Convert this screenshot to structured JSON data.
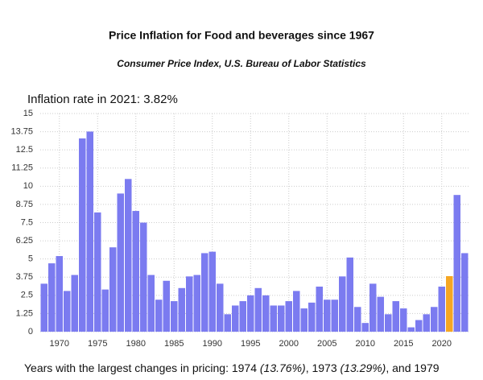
{
  "chart_data": {
    "type": "bar",
    "title": "Price Inflation for Food and beverages since 1967",
    "subtitle": "Consumer Price Index, U.S. Bureau of Labor Statistics",
    "annotation": "Inflation rate in 2021: 3.82%",
    "footer": [
      {
        "text": "Years with the largest changes in pricing: 1974 ",
        "italic": false
      },
      {
        "text": "(13.76%)",
        "italic": true
      },
      {
        "text": ", 1973 ",
        "italic": false
      },
      {
        "text": "(13.29%)",
        "italic": true
      },
      {
        "text": ", and 1979",
        "italic": false
      }
    ],
    "x": [
      1968,
      1969,
      1970,
      1971,
      1972,
      1973,
      1974,
      1975,
      1976,
      1977,
      1978,
      1979,
      1980,
      1981,
      1982,
      1983,
      1984,
      1985,
      1986,
      1987,
      1988,
      1989,
      1990,
      1991,
      1992,
      1993,
      1994,
      1995,
      1996,
      1997,
      1998,
      1999,
      2000,
      2001,
      2002,
      2003,
      2004,
      2005,
      2006,
      2007,
      2008,
      2009,
      2010,
      2011,
      2012,
      2013,
      2014,
      2015,
      2016,
      2017,
      2018,
      2019,
      2020,
      2021,
      2022,
      2023
    ],
    "values": [
      3.3,
      4.7,
      5.2,
      2.8,
      3.9,
      13.29,
      13.76,
      8.2,
      2.9,
      5.8,
      9.5,
      10.5,
      8.3,
      7.5,
      3.9,
      2.2,
      3.5,
      2.1,
      3.0,
      3.8,
      3.9,
      5.4,
      5.5,
      3.3,
      1.2,
      1.8,
      2.1,
      2.5,
      3.0,
      2.5,
      1.8,
      1.8,
      2.1,
      2.8,
      1.6,
      2.0,
      3.1,
      2.2,
      2.2,
      3.8,
      5.1,
      1.7,
      0.6,
      3.3,
      2.4,
      1.2,
      2.1,
      1.6,
      0.3,
      0.8,
      1.2,
      1.7,
      3.1,
      3.82,
      9.4,
      5.4
    ],
    "colors": [
      "#7b7bf0",
      "#7b7bf0",
      "#7b7bf0",
      "#7b7bf0",
      "#7b7bf0",
      "#7b7bf0",
      "#7b7bf0",
      "#7b7bf0",
      "#7b7bf0",
      "#7b7bf0",
      "#7b7bf0",
      "#7b7bf0",
      "#7b7bf0",
      "#7b7bf0",
      "#7b7bf0",
      "#7b7bf0",
      "#7b7bf0",
      "#7b7bf0",
      "#7b7bf0",
      "#7b7bf0",
      "#7b7bf0",
      "#7b7bf0",
      "#7b7bf0",
      "#7b7bf0",
      "#7b7bf0",
      "#7b7bf0",
      "#7b7bf0",
      "#7b7bf0",
      "#7b7bf0",
      "#7b7bf0",
      "#7b7bf0",
      "#7b7bf0",
      "#7b7bf0",
      "#7b7bf0",
      "#7b7bf0",
      "#7b7bf0",
      "#7b7bf0",
      "#7b7bf0",
      "#7b7bf0",
      "#7b7bf0",
      "#7b7bf0",
      "#7b7bf0",
      "#7b7bf0",
      "#7b7bf0",
      "#7b7bf0",
      "#7b7bf0",
      "#7b7bf0",
      "#7b7bf0",
      "#7b7bf0",
      "#7b7bf0",
      "#7b7bf0",
      "#7b7bf0",
      "#7b7bf0",
      "#f5a623",
      "#7b7bf0",
      "#7b7bf0"
    ],
    "xlim": [
      1967.5,
      2023.5
    ],
    "xticks": [
      1970,
      1975,
      1980,
      1985,
      1990,
      1995,
      2000,
      2005,
      2010,
      2015,
      2020
    ],
    "ylim": [
      0,
      15
    ],
    "yticks": [
      0,
      1.25,
      2.5,
      3.75,
      5,
      6.25,
      7.5,
      8.75,
      10,
      11.25,
      12.5,
      13.75,
      15
    ],
    "grid": true
  }
}
